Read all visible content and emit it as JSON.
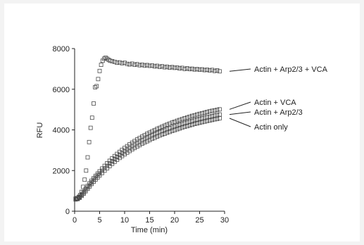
{
  "chart_data": {
    "type": "scatter",
    "title": "",
    "xlabel": "Time (min)",
    "ylabel": "RFU",
    "xlim": [
      0,
      30
    ],
    "ylim": [
      0,
      8000
    ],
    "xticks": [
      0,
      5,
      10,
      15,
      20,
      25,
      30
    ],
    "yticks": [
      0,
      2000,
      4000,
      6000,
      8000
    ],
    "grid": false,
    "legend": "right, with leader lines",
    "marker": "open-square",
    "series": [
      {
        "name": "Actin + Arp2/3 + VCA",
        "x": [
          0.2,
          0.5,
          0.8,
          1.1,
          1.4,
          1.7,
          2.0,
          2.3,
          2.6,
          2.9,
          3.2,
          3.5,
          3.8,
          4.1,
          4.4,
          4.7,
          5.0,
          5.3,
          5.6,
          5.9,
          6.2,
          6.5,
          6.8,
          7.1,
          7.5,
          8.0,
          8.5,
          9.0,
          9.5,
          10,
          10.5,
          11,
          11.5,
          12,
          12.5,
          13,
          13.5,
          14,
          14.5,
          15,
          15.5,
          16,
          16.5,
          17,
          17.5,
          18,
          18.5,
          19,
          19.5,
          20,
          20.5,
          21,
          21.5,
          22,
          22.5,
          23,
          23.5,
          24,
          24.5,
          25,
          25.5,
          26,
          26.5,
          27,
          27.5,
          28,
          28.5,
          29
        ],
        "y": [
          620,
          640,
          700,
          800,
          950,
          1200,
          1550,
          2000,
          2650,
          3400,
          4100,
          4600,
          5300,
          6100,
          6150,
          6500,
          6900,
          7200,
          7400,
          7500,
          7550,
          7500,
          7450,
          7400,
          7380,
          7350,
          7300,
          7320,
          7280,
          7300,
          7250,
          7220,
          7260,
          7200,
          7230,
          7180,
          7210,
          7160,
          7190,
          7150,
          7170,
          7120,
          7150,
          7100,
          7130,
          7080,
          7110,
          7060,
          7090,
          7050,
          7070,
          7020,
          7050,
          7000,
          7030,
          6990,
          7010,
          6970,
          6990,
          6960,
          6980,
          6940,
          6960,
          6920,
          6950,
          6900,
          6930,
          6880
        ]
      },
      {
        "name": "Actin + VCA",
        "x": [
          0.2,
          0.6,
          1.0,
          1.4,
          1.8,
          2.2,
          2.6,
          3.0,
          3.4,
          3.8,
          4.2,
          4.6,
          5.0,
          5.5,
          6.0,
          6.5,
          7.0,
          7.5,
          8.0,
          8.5,
          9.0,
          9.5,
          10,
          10.5,
          11,
          11.5,
          12,
          12.5,
          13,
          13.5,
          14,
          14.5,
          15,
          15.5,
          16,
          16.5,
          17,
          17.5,
          18,
          18.5,
          19,
          19.5,
          20,
          20.5,
          21,
          21.5,
          22,
          22.5,
          23,
          23.5,
          24,
          24.5,
          25,
          25.5,
          26,
          26.5,
          27,
          27.5,
          28,
          28.5,
          29
        ],
        "y": [
          600,
          640,
          720,
          830,
          960,
          1100,
          1240,
          1380,
          1500,
          1620,
          1740,
          1850,
          1960,
          2100,
          2230,
          2360,
          2480,
          2600,
          2710,
          2820,
          2920,
          3020,
          3110,
          3200,
          3290,
          3370,
          3450,
          3530,
          3600,
          3670,
          3740,
          3810,
          3870,
          3930,
          3990,
          4050,
          4100,
          4160,
          4210,
          4260,
          4310,
          4360,
          4400,
          4450,
          4490,
          4530,
          4570,
          4610,
          4650,
          4690,
          4720,
          4760,
          4790,
          4820,
          4850,
          4880,
          4910,
          4940,
          4960,
          4990,
          5010
        ]
      },
      {
        "name": "Actin + Arp2/3",
        "x": [
          0.2,
          0.6,
          1.0,
          1.4,
          1.8,
          2.2,
          2.6,
          3.0,
          3.4,
          3.8,
          4.2,
          4.6,
          5.0,
          5.5,
          6.0,
          6.5,
          7.0,
          7.5,
          8.0,
          8.5,
          9.0,
          9.5,
          10,
          10.5,
          11,
          11.5,
          12,
          12.5,
          13,
          13.5,
          14,
          14.5,
          15,
          15.5,
          16,
          16.5,
          17,
          17.5,
          18,
          18.5,
          19,
          19.5,
          20,
          20.5,
          21,
          21.5,
          22,
          22.5,
          23,
          23.5,
          24,
          24.5,
          25,
          25.5,
          26,
          26.5,
          27,
          27.5,
          28,
          28.5,
          29
        ],
        "y": [
          590,
          620,
          690,
          790,
          910,
          1040,
          1170,
          1300,
          1420,
          1540,
          1650,
          1760,
          1860,
          1990,
          2110,
          2230,
          2350,
          2460,
          2570,
          2670,
          2770,
          2860,
          2950,
          3040,
          3120,
          3200,
          3280,
          3350,
          3420,
          3490,
          3560,
          3620,
          3680,
          3740,
          3800,
          3850,
          3900,
          3950,
          4000,
          4050,
          4090,
          4140,
          4180,
          4220,
          4260,
          4300,
          4340,
          4370,
          4410,
          4440,
          4480,
          4510,
          4540,
          4570,
          4600,
          4630,
          4650,
          4680,
          4710,
          4730,
          4760
        ]
      },
      {
        "name": "Actin only",
        "x": [
          0.2,
          0.6,
          1.0,
          1.4,
          1.8,
          2.2,
          2.6,
          3.0,
          3.4,
          3.8,
          4.2,
          4.6,
          5.0,
          5.5,
          6.0,
          6.5,
          7.0,
          7.5,
          8.0,
          8.5,
          9.0,
          9.5,
          10,
          10.5,
          11,
          11.5,
          12,
          12.5,
          13,
          13.5,
          14,
          14.5,
          15,
          15.5,
          16,
          16.5,
          17,
          17.5,
          18,
          18.5,
          19,
          19.5,
          20,
          20.5,
          21,
          21.5,
          22,
          22.5,
          23,
          23.5,
          24,
          24.5,
          25,
          25.5,
          26,
          26.5,
          27,
          27.5,
          28,
          28.5,
          29
        ],
        "y": [
          580,
          600,
          660,
          750,
          860,
          980,
          1100,
          1220,
          1340,
          1450,
          1560,
          1660,
          1760,
          1880,
          2000,
          2110,
          2220,
          2330,
          2430,
          2530,
          2620,
          2710,
          2800,
          2880,
          2960,
          3040,
          3110,
          3180,
          3250,
          3320,
          3380,
          3440,
          3500,
          3560,
          3610,
          3670,
          3720,
          3770,
          3810,
          3860,
          3900,
          3950,
          3990,
          4030,
          4070,
          4110,
          4150,
          4180,
          4220,
          4250,
          4290,
          4320,
          4350,
          4380,
          4410,
          4440,
          4460,
          4490,
          4520,
          4540,
          4570
        ]
      }
    ]
  },
  "colors": {
    "marker_stroke": "#4a4a4a",
    "axis": "#222222",
    "background": "#ffffff"
  }
}
